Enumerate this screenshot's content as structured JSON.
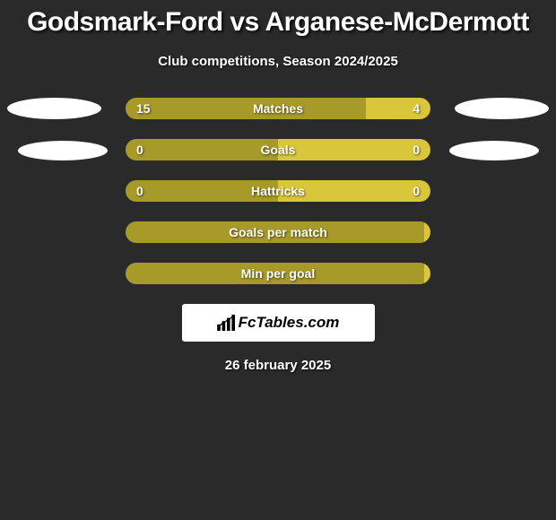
{
  "title": "Godsmark-Ford vs Arganese-McDermott",
  "subtitle": "Club competitions, Season 2024/2025",
  "date": "26 february 2025",
  "logo_text": "FcTables.com",
  "colors": {
    "background": "#2a2a2a",
    "bar_left": "#a79a29",
    "bar_right": "#d9c63a",
    "ellipse": "#ffffff",
    "text": "#ffffff",
    "logo_bg": "#ffffff",
    "logo_text": "#000000"
  },
  "bars": [
    {
      "label": "Matches",
      "left_val": "15",
      "right_val": "4",
      "left_pct": 78.9,
      "right_pct": 21.1
    },
    {
      "label": "Goals",
      "left_val": "0",
      "right_val": "0",
      "left_pct": 50,
      "right_pct": 50
    },
    {
      "label": "Hattricks",
      "left_val": "0",
      "right_val": "0",
      "left_pct": 50,
      "right_pct": 50
    },
    {
      "label": "Goals per match",
      "left_val": "",
      "right_val": "",
      "left_pct": 98,
      "right_pct": 2
    },
    {
      "label": "Min per goal",
      "left_val": "",
      "right_val": "",
      "left_pct": 98,
      "right_pct": 2
    }
  ],
  "ellipses_left_count": 2,
  "ellipses_right_count": 2
}
